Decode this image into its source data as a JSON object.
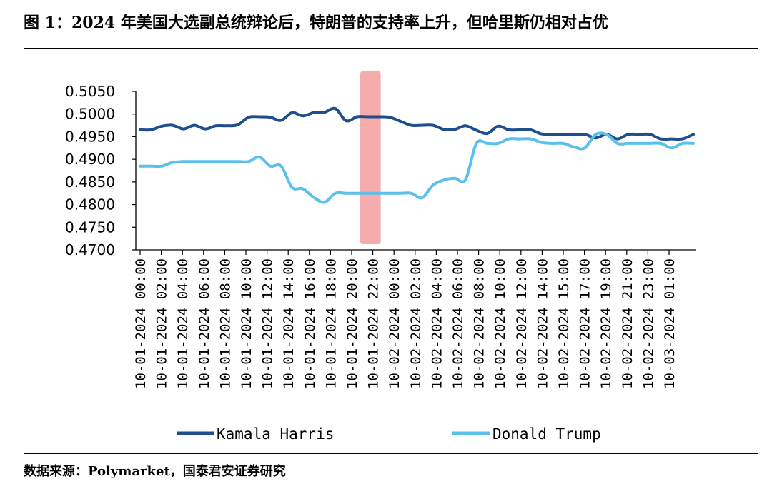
{
  "figure": {
    "title": "图 1：2024 年美国大选副总统辩论后，特朗普的支持率上升，但哈里斯仍相对占优",
    "source": "数据来源：Polymarket，国泰君安证券研究"
  },
  "chart_data": {
    "type": "line",
    "title": "",
    "xlabel": "",
    "ylabel": "",
    "ylim": [
      0.47,
      0.505
    ],
    "yticks": [
      "0.5050",
      "0.5000",
      "0.4950",
      "0.4900",
      "0.4850",
      "0.4800",
      "0.4750",
      "0.4700"
    ],
    "ytick_values": [
      0.505,
      0.5,
      0.495,
      0.49,
      0.485,
      0.48,
      0.475,
      0.47
    ],
    "grid": false,
    "legend_position": "bottom",
    "x_tick_labels": [
      "10-01-2024 00:00",
      "10-01-2024 02:00",
      "10-01-2024 04:00",
      "10-01-2024 06:00",
      "10-01-2024 08:00",
      "10-01-2024 10:00",
      "10-01-2024 12:00",
      "10-01-2024 14:00",
      "10-01-2024 16:00",
      "10-01-2024 18:00",
      "10-01-2024 20:00",
      "10-01-2024 22:00",
      "10-02-2024 00:00",
      "10-02-2024 02:00",
      "10-02-2024 04:00",
      "10-02-2024 06:00",
      "10-02-2024 08:00",
      "10-02-2024 10:00",
      "10-02-2024 12:00",
      "10-02-2024 14:00",
      "10-02-2024 15:00",
      "10-02-2024 17:00",
      "10-02-2024 19:00",
      "10-02-2024 21:00",
      "10-02-2024 23:00",
      "10-03-2024 01:00"
    ],
    "highlight_band": {
      "from_index": 10,
      "to_index": 11,
      "color": "#f4a3a3"
    },
    "series": [
      {
        "name": "Kamala Harris",
        "color": "#1f4e8c",
        "values": [
          0.4965,
          0.4965,
          0.4973,
          0.4975,
          0.4967,
          0.4975,
          0.4967,
          0.4974,
          0.4974,
          0.4976,
          0.4993,
          0.4994,
          0.4993,
          0.4986,
          0.5003,
          0.4996,
          0.5003,
          0.5004,
          0.5012,
          0.4985,
          0.4994,
          0.4994,
          0.4994,
          0.4993,
          0.4984,
          0.4975,
          0.4975,
          0.4975,
          0.4966,
          0.4966,
          0.4974,
          0.4964,
          0.4957,
          0.4973,
          0.4965,
          0.4965,
          0.4965,
          0.4956,
          0.4955,
          0.4955,
          0.4955,
          0.4955,
          0.4947,
          0.4955,
          0.4945,
          0.4955,
          0.4955,
          0.4955,
          0.4945,
          0.4945,
          0.4945,
          0.4955
        ]
      },
      {
        "name": "Donald Trump",
        "color": "#5bc0eb",
        "values": [
          0.4885,
          0.4885,
          0.4885,
          0.4893,
          0.4895,
          0.4895,
          0.4895,
          0.4895,
          0.4895,
          0.4895,
          0.4895,
          0.4905,
          0.4885,
          0.4885,
          0.4838,
          0.4835,
          0.4816,
          0.4805,
          0.4825,
          0.4825,
          0.4825,
          0.4825,
          0.4825,
          0.4825,
          0.4825,
          0.4825,
          0.4815,
          0.4843,
          0.4854,
          0.4858,
          0.4855,
          0.4935,
          0.4935,
          0.4935,
          0.4945,
          0.4945,
          0.4945,
          0.4937,
          0.4935,
          0.4935,
          0.4927,
          0.4925,
          0.4955,
          0.4955,
          0.4935,
          0.4935,
          0.4935,
          0.4935,
          0.4935,
          0.4925,
          0.4935,
          0.4935
        ]
      }
    ]
  }
}
